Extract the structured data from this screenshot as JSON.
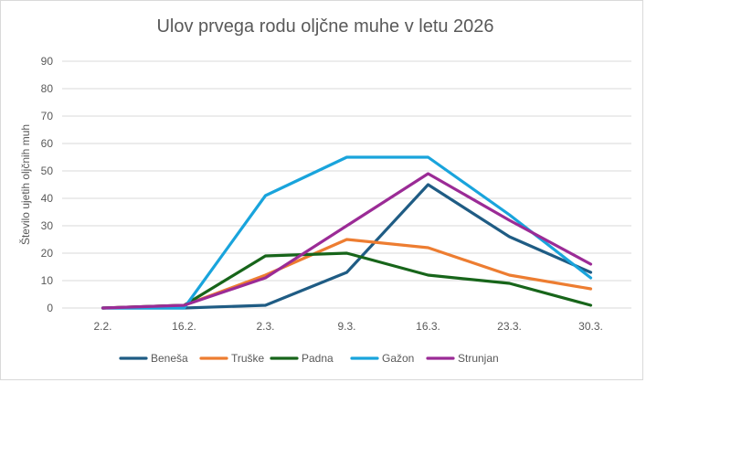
{
  "chart_data": {
    "type": "line",
    "title": "Ulov prvega rodu oljčne muhe v letu 2026",
    "xlabel": "",
    "ylabel": "Število ujetih oljčnih muh",
    "ylim": [
      0,
      90
    ],
    "yticks": [
      0,
      10,
      20,
      30,
      40,
      50,
      60,
      70,
      80,
      90
    ],
    "grid": true,
    "legend_position": "bottom",
    "categories": [
      "2.2.",
      "16.2.",
      "2.3.",
      "9.3.",
      "16.3.",
      "23.3.",
      "30.3."
    ],
    "series": [
      {
        "name": "Beneša",
        "color": "#1f5c84",
        "values": [
          0,
          0,
          1,
          13,
          45,
          26,
          13
        ]
      },
      {
        "name": "Truške",
        "color": "#ed7d31",
        "values": [
          0,
          1,
          12,
          25,
          22,
          12,
          7
        ]
      },
      {
        "name": "Padna",
        "color": "#17651a",
        "values": [
          0,
          1,
          19,
          20,
          12,
          9,
          1
        ]
      },
      {
        "name": "Gažon",
        "color": "#19a4dc",
        "values": [
          0,
          0,
          41,
          55,
          55,
          34,
          11
        ]
      },
      {
        "name": "Strunjan",
        "color": "#9b2b96",
        "values": [
          0,
          1,
          11,
          30,
          49,
          32,
          16
        ]
      }
    ]
  }
}
